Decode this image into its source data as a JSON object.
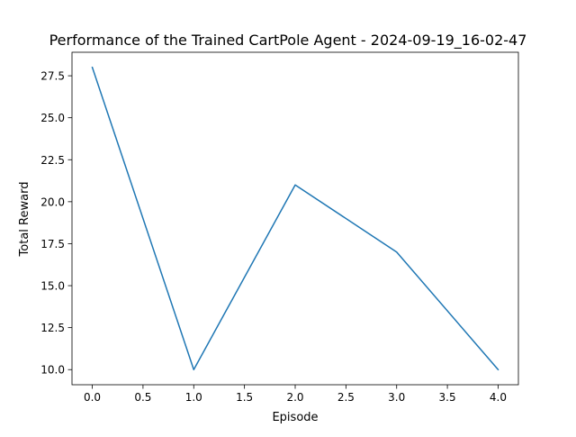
{
  "chart_data": {
    "type": "line",
    "title": "Performance of the Trained CartPole Agent - 2024-09-19_16-02-47",
    "xlabel": "Episode",
    "ylabel": "Total Reward",
    "x": [
      0,
      1,
      2,
      3,
      4
    ],
    "series": [
      {
        "values": [
          28,
          10,
          21,
          17,
          10
        ],
        "color": "#1f77b4"
      }
    ],
    "xlim": [
      -0.2,
      4.2
    ],
    "ylim": [
      9.1,
      28.9
    ],
    "xticks": [
      0.0,
      0.5,
      1.0,
      1.5,
      2.0,
      2.5,
      3.0,
      3.5,
      4.0
    ],
    "xtick_labels": [
      "0.0",
      "0.5",
      "1.0",
      "1.5",
      "2.0",
      "2.5",
      "3.0",
      "3.5",
      "4.0"
    ],
    "yticks": [
      10.0,
      12.5,
      15.0,
      17.5,
      20.0,
      22.5,
      25.0,
      27.5
    ],
    "ytick_labels": [
      "10.0",
      "12.5",
      "15.0",
      "17.5",
      "20.0",
      "22.5",
      "25.0",
      "27.5"
    ],
    "grid": false,
    "legend": "none"
  }
}
